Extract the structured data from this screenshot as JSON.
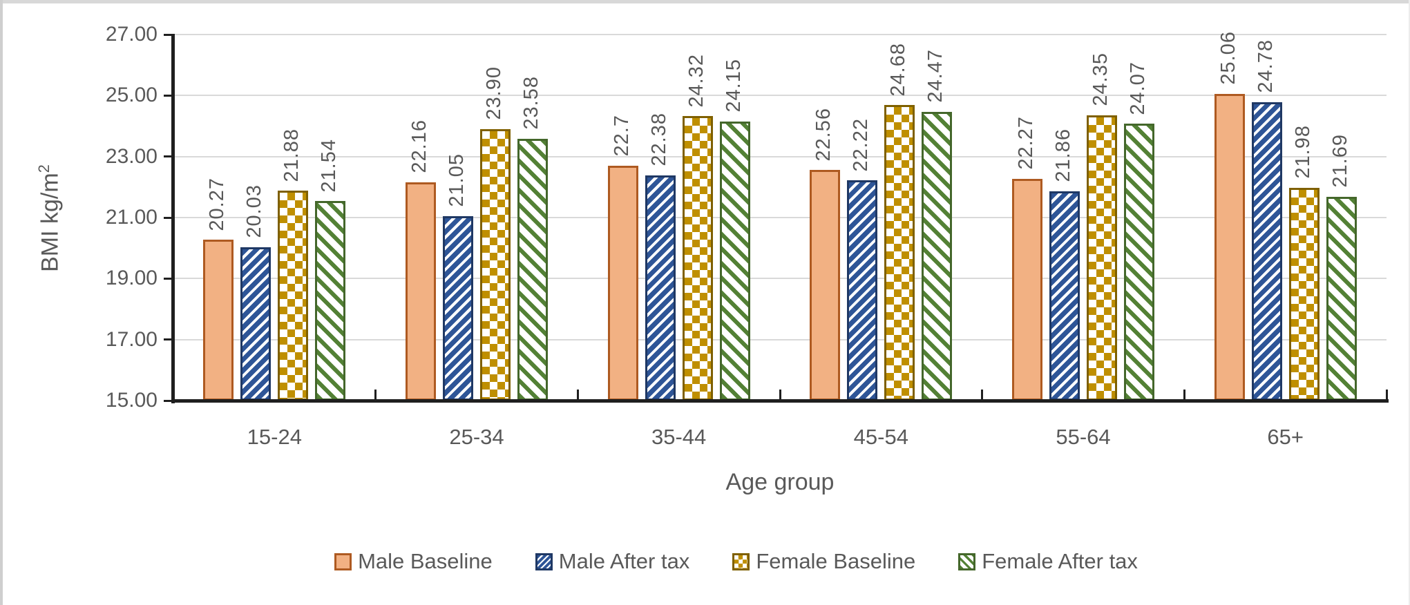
{
  "frame": {
    "top_edge_color": "#d8d8d8",
    "left_edge_color": "#cfcfcf"
  },
  "chart_data": {
    "type": "bar",
    "title": "",
    "xlabel": "Age group",
    "ylabel": "BMI kg/m²",
    "ylabel_base": "BMI kg/m",
    "ylabel_sup": "2",
    "ylim": [
      15,
      27
    ],
    "ytick_values": [
      15,
      17,
      19,
      21,
      23,
      25,
      27
    ],
    "ytick_labels": [
      "15.00",
      "17.00",
      "19.00",
      "21.00",
      "23.00",
      "25.00",
      "27.00"
    ],
    "grid": true,
    "legend_position": "bottom",
    "categories": [
      "15-24",
      "25-34",
      "35-44",
      "45-54",
      "55-64",
      "65+"
    ],
    "series": [
      {
        "name": "Male Baseline",
        "pattern": "solid",
        "fill": "#F2B183",
        "border": "#AE5A21",
        "values": [
          20.27,
          22.16,
          22.7,
          22.56,
          22.27,
          25.06
        ],
        "labels": [
          "20.27",
          "22.16",
          "22.7",
          "22.56",
          "22.27",
          "25.06"
        ]
      },
      {
        "name": "Male After tax",
        "pattern": "diag-up",
        "fill": "#2E5597",
        "border": "#1F3864",
        "values": [
          20.03,
          21.05,
          22.38,
          22.22,
          21.86,
          24.78
        ],
        "labels": [
          "20.03",
          "21.05",
          "22.38",
          "22.22",
          "21.86",
          "24.78"
        ]
      },
      {
        "name": "Female Baseline",
        "pattern": "checker",
        "fill": "#BF8F00",
        "border": "#7F6000",
        "values": [
          21.88,
          23.9,
          24.32,
          24.68,
          24.35,
          21.98
        ],
        "labels": [
          "21.88",
          "23.90",
          "24.32",
          "24.68",
          "24.35",
          "21.98"
        ]
      },
      {
        "name": "Female After tax",
        "pattern": "diag-down",
        "fill": "#538135",
        "border": "#44672B",
        "values": [
          21.54,
          23.58,
          24.15,
          24.47,
          24.07,
          21.69
        ],
        "labels": [
          "21.54",
          "23.58",
          "24.15",
          "24.47",
          "24.07",
          "21.69"
        ]
      }
    ],
    "colors": {
      "axis": "#1f1f1f",
      "gridline": "#d9d9d9",
      "text": "#595959",
      "pattern_background": "#ffffff"
    }
  }
}
